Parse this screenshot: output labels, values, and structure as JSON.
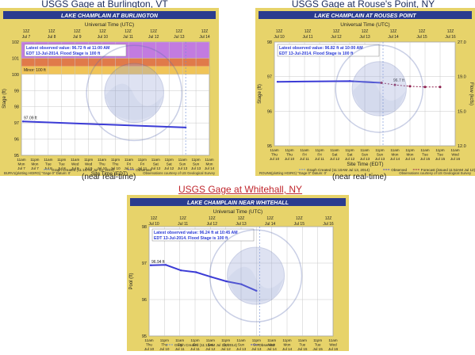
{
  "headings": {
    "left": "USGS Gage at Burlington, VT",
    "right": "USGS Gage at Rouse's Point, NY",
    "bottom": "USGS Gage at Whitehall, NY"
  },
  "notes": {
    "left": "(near real-time)",
    "right": "(near real-time)"
  },
  "colors": {
    "frame": "#e7d36a",
    "header_bar": "#2a3b8f",
    "observed": "#3b3bd6",
    "forecast": "#8b1a4a",
    "flood_purple": "#c27be0",
    "flood_red": "#e07a4a",
    "flood_orange": "#f0c458",
    "grid": "#c8c8c8",
    "link": "#c0262c"
  },
  "charts": [
    {
      "id": "burlington",
      "title": "LAKE CHAMPLAIN AT BURLINGTON",
      "utc_label": "Universal Time (UTC)",
      "edt_label": "Site Time (EDT)",
      "ylabel": "Stage (ft)",
      "y_ticks": [
        "102",
        "101",
        "100",
        "99",
        "98",
        "97",
        "96",
        "95"
      ],
      "top_ticks": [
        [
          "12Z",
          "Jul 7"
        ],
        [
          "12Z",
          "Jul 8"
        ],
        [
          "12Z",
          "Jul 9"
        ],
        [
          "12Z",
          "Jul 10"
        ],
        [
          "12Z",
          "Jul 11"
        ],
        [
          "12Z",
          "Jul 12"
        ],
        [
          "12Z",
          "Jul 13"
        ],
        [
          "12Z",
          "Jul 14"
        ]
      ],
      "bottom_ticks": [
        [
          "11am",
          "Mon",
          "Jul 7"
        ],
        [
          "11pm",
          "Mon",
          "Jul 7"
        ],
        [
          "11am",
          "Tue",
          "Jul 8"
        ],
        [
          "11pm",
          "Tue",
          "Jul 8"
        ],
        [
          "11am",
          "Wed",
          "Jul 9"
        ],
        [
          "11pm",
          "Wed",
          "Jul 9"
        ],
        [
          "11am",
          "Thu",
          "Jul 10"
        ],
        [
          "11pm",
          "Thu",
          "Jul 10"
        ],
        [
          "11am",
          "Fri",
          "Jul 11"
        ],
        [
          "11pm",
          "Fri",
          "Jul 11"
        ],
        [
          "11am",
          "Sat",
          "Jul 12"
        ],
        [
          "11pm",
          "Sat",
          "Jul 12"
        ],
        [
          "11am",
          "Sun",
          "Jul 13"
        ],
        [
          "11pm",
          "Sun",
          "Jul 13"
        ],
        [
          "11am",
          "Mon",
          "Jul 14"
        ]
      ],
      "info_line1": "Latest observed value: 96.72 ft at 11:00 AM",
      "info_line2": "EDT 13-Jul-2014. Flood Stage is 100 ft",
      "start_label": "97.09 ft",
      "minor_label": "Minor: 100 ft",
      "footer_left": "BURV1(plotting HGIRG) \"Gage 0\" Datum: 0'",
      "footer_right": "Observations courtesy of US Geological Survey",
      "legend": [
        "Graph Created (11:10AM Jul 13, 2014)",
        "Observed"
      ],
      "chart_data": {
        "type": "line",
        "ylim": [
          95,
          102
        ],
        "series": [
          {
            "name": "Observed",
            "x": [
              "Jul 7 11am",
              "Jul 13 11am"
            ],
            "values": [
              97.09,
              96.72
            ]
          }
        ],
        "bands": [
          {
            "from": 101,
            "to": 102
          },
          {
            "from": 100.5,
            "to": 101
          },
          {
            "from": 100,
            "to": 100.5
          }
        ]
      }
    },
    {
      "id": "rouses",
      "title": "LAKE CHAMPLAIN AT ROUSES POINT",
      "utc_label": "Universal Time (UTC)",
      "edt_label": "Site Time (EDT)",
      "ylabel": "Stage (ft)",
      "y2label": "Flow (kcfs)",
      "y_ticks": [
        "98",
        "97",
        "96",
        "95"
      ],
      "y2_ticks": [
        "27.0",
        "19.0",
        "15.0",
        "12.0"
      ],
      "top_ticks": [
        [
          "12Z",
          "Jul 10"
        ],
        [
          "12Z",
          "Jul 11"
        ],
        [
          "12Z",
          "Jul 12"
        ],
        [
          "12Z",
          "Jul 13"
        ],
        [
          "12Z",
          "Jul 14"
        ],
        [
          "12Z",
          "Jul 15"
        ],
        [
          "12Z",
          "Jul 16"
        ]
      ],
      "bottom_ticks": [
        [
          "11am",
          "Thu",
          "Jul 10"
        ],
        [
          "11pm",
          "Thu",
          "Jul 10"
        ],
        [
          "11am",
          "Fri",
          "Jul 11"
        ],
        [
          "11pm",
          "Fri",
          "Jul 11"
        ],
        [
          "11am",
          "Sat",
          "Jul 12"
        ],
        [
          "11pm",
          "Sat",
          "Jul 12"
        ],
        [
          "11am",
          "Sun",
          "Jul 13"
        ],
        [
          "11pm",
          "Sun",
          "Jul 13"
        ],
        [
          "11am",
          "Mon",
          "Jul 14"
        ],
        [
          "11pm",
          "Mon",
          "Jul 14"
        ],
        [
          "11am",
          "Tue",
          "Jul 15"
        ],
        [
          "11pm",
          "Tue",
          "Jul 15"
        ],
        [
          "11am",
          "Wed",
          "Jul 16"
        ]
      ],
      "info_line1": "Latest observed value: 96.82 ft at 10:00 AM",
      "info_line2": "EDT 13-Jul-2014. Flood Stage is 100 ft",
      "end_label": "96.7 ft",
      "footer_left": "ROUN6(plotting HGIRG) \"Gage 0\" Datum: 0'",
      "footer_right": "Observations courtesy of US Geological Survey",
      "legend": [
        "Graph Created (11:10AM Jul 13, 2014)",
        "Observed",
        "Forecast (issued 11:52AM Jul 12)"
      ],
      "chart_data": {
        "type": "line",
        "ylim": [
          95,
          98
        ],
        "series": [
          {
            "name": "Observed",
            "values": [
              96.85,
              96.82
            ]
          },
          {
            "name": "Forecast",
            "values": [
              96.82,
              96.7
            ]
          }
        ]
      }
    },
    {
      "id": "whitehall",
      "title": "LAKE CHAMPLAIN NEAR WHITEHALL",
      "utc_label": "Universal Time (UTC)",
      "edt_label": "Site Time (EDT)",
      "ylabel": "Pool (ft)",
      "y_ticks": [
        "98",
        "97",
        "96",
        "95"
      ],
      "top_ticks": [
        [
          "12Z",
          "Jul 10"
        ],
        [
          "12Z",
          "Jul 11"
        ],
        [
          "12Z",
          "Jul 12"
        ],
        [
          "12Z",
          "Jul 13"
        ],
        [
          "12Z",
          "Jul 14"
        ],
        [
          "12Z",
          "Jul 15"
        ],
        [
          "12Z",
          "Jul 16"
        ]
      ],
      "bottom_ticks": [
        [
          "11am",
          "Thu",
          "Jul 10"
        ],
        [
          "11pm",
          "Thu",
          "Jul 10"
        ],
        [
          "11am",
          "Fri",
          "Jul 11"
        ],
        [
          "11pm",
          "Fri",
          "Jul 11"
        ],
        [
          "11am",
          "Sat",
          "Jul 12"
        ],
        [
          "11pm",
          "Sat",
          "Jul 12"
        ],
        [
          "11am",
          "Sun",
          "Jul 13"
        ],
        [
          "11pm",
          "Sun",
          "Jul 13"
        ],
        [
          "11am",
          "Mon",
          "Jul 14"
        ],
        [
          "11pm",
          "Mon",
          "Jul 14"
        ],
        [
          "11am",
          "Tue",
          "Jul 15"
        ],
        [
          "11pm",
          "Tue",
          "Jul 15"
        ],
        [
          "11am",
          "Wed",
          "Jul 16"
        ]
      ],
      "info_line1": "Latest observed value: 96.24 ft at 10:45 AM",
      "info_line2": "EDT 13-Jul-2014. Flood Stage is 100 ft",
      "start_label": "96.94 ft",
      "legend": [
        "Graph Created (11:13AM Jul 13, 2014)",
        "Observed"
      ],
      "chart_data": {
        "type": "line",
        "ylim": [
          95,
          98
        ],
        "series": [
          {
            "name": "Observed",
            "values": [
              96.94,
              96.95,
              96.8,
              96.75,
              96.62,
              96.5,
              96.42,
              96.24
            ]
          }
        ]
      }
    }
  ]
}
